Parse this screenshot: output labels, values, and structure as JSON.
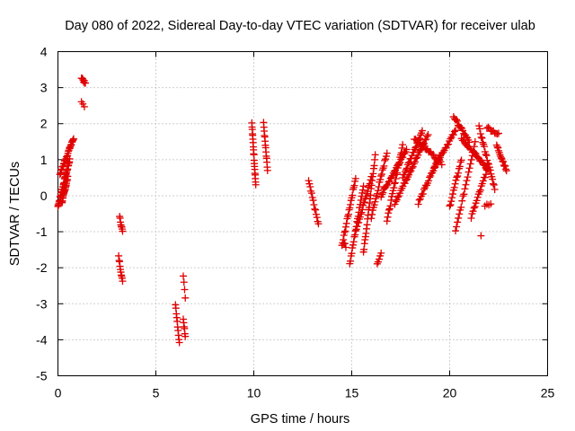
{
  "chart_data": {
    "type": "scatter",
    "title": "Day 080 of 2022, Sidereal Day-to-day VTEC variation (SDTVAR) for receiver ulab",
    "xlabel": "GPS time / hours",
    "ylabel": "SDTVAR / TECUs",
    "xlim": [
      0,
      25
    ],
    "ylim": [
      -5,
      4
    ],
    "xticks": [
      "0",
      "5",
      "10",
      "15",
      "20",
      "25"
    ],
    "yticks": [
      "-5",
      "-4",
      "-3",
      "-2",
      "-1",
      "0",
      "1",
      "2",
      "3",
      "4"
    ],
    "grid": true,
    "marker": "plus",
    "color": "#e00000",
    "segments": [
      {
        "x": [
          0.0,
          0.6
        ],
        "y": [
          -0.3,
          1.0
        ],
        "n": 40
      },
      {
        "x": [
          0.1,
          0.8
        ],
        "y": [
          0.6,
          1.6
        ],
        "n": 30
      },
      {
        "x": [
          0.2,
          0.5
        ],
        "y": [
          -0.2,
          0.5
        ],
        "n": 20
      },
      {
        "x": [
          1.2,
          1.4
        ],
        "y": [
          3.3,
          3.1
        ],
        "n": 8
      },
      {
        "x": [
          1.2,
          1.35
        ],
        "y": [
          2.6,
          2.5
        ],
        "n": 3
      },
      {
        "x": [
          3.15,
          3.3
        ],
        "y": [
          -0.6,
          -1.0
        ],
        "n": 8
      },
      {
        "x": [
          3.1,
          3.3
        ],
        "y": [
          -1.7,
          -2.4
        ],
        "n": 10
      },
      {
        "x": [
          6.0,
          6.2
        ],
        "y": [
          -3.0,
          -4.1
        ],
        "n": 10
      },
      {
        "x": [
          6.4,
          6.5
        ],
        "y": [
          -3.4,
          -3.9
        ],
        "n": 6
      },
      {
        "x": [
          6.4,
          6.5
        ],
        "y": [
          -2.2,
          -2.8
        ],
        "n": 4
      },
      {
        "x": [
          9.9,
          10.1
        ],
        "y": [
          2.0,
          0.3
        ],
        "n": 20
      },
      {
        "x": [
          10.5,
          10.7
        ],
        "y": [
          2.0,
          0.7
        ],
        "n": 14
      },
      {
        "x": [
          12.8,
          13.3
        ],
        "y": [
          0.4,
          -0.8
        ],
        "n": 14
      },
      {
        "x": [
          14.5,
          15.2
        ],
        "y": [
          -1.4,
          0.5
        ],
        "n": 22
      },
      {
        "x": [
          14.9,
          15.6
        ],
        "y": [
          -1.9,
          0.3
        ],
        "n": 22
      },
      {
        "x": [
          15.2,
          16.0
        ],
        "y": [
          -1.0,
          0.5
        ],
        "n": 22
      },
      {
        "x": [
          15.6,
          16.2
        ],
        "y": [
          -1.6,
          1.1
        ],
        "n": 24
      },
      {
        "x": [
          16.3,
          16.5
        ],
        "y": [
          -1.9,
          -1.6
        ],
        "n": 5
      },
      {
        "x": [
          16.0,
          16.8
        ],
        "y": [
          -0.6,
          1.2
        ],
        "n": 22
      },
      {
        "x": [
          16.5,
          17.8
        ],
        "y": [
          0.0,
          1.3
        ],
        "n": 28
      },
      {
        "x": [
          16.8,
          17.6
        ],
        "y": [
          -0.7,
          1.4
        ],
        "n": 24
      },
      {
        "x": [
          17.2,
          18.9
        ],
        "y": [
          -0.2,
          1.7
        ],
        "n": 34
      },
      {
        "x": [
          17.6,
          18.6
        ],
        "y": [
          0.5,
          1.8
        ],
        "n": 24
      },
      {
        "x": [
          18.4,
          19.5
        ],
        "y": [
          -0.2,
          1.1
        ],
        "n": 24
      },
      {
        "x": [
          18.2,
          19.6
        ],
        "y": [
          1.6,
          0.9
        ],
        "n": 24
      },
      {
        "x": [
          19.2,
          20.3
        ],
        "y": [
          0.8,
          1.8
        ],
        "n": 22
      },
      {
        "x": [
          20.0,
          20.6
        ],
        "y": [
          -0.3,
          1.0
        ],
        "n": 16
      },
      {
        "x": [
          20.2,
          21.0
        ],
        "y": [
          2.2,
          1.5
        ],
        "n": 18
      },
      {
        "x": [
          20.3,
          21.3
        ],
        "y": [
          -1.0,
          1.5
        ],
        "n": 22
      },
      {
        "x": [
          20.6,
          22.0
        ],
        "y": [
          1.6,
          0.7
        ],
        "n": 26
      },
      {
        "x": [
          21.1,
          21.9
        ],
        "y": [
          -0.6,
          0.7
        ],
        "n": 18
      },
      {
        "x": [
          21.5,
          22.3
        ],
        "y": [
          1.9,
          0.2
        ],
        "n": 22
      },
      {
        "x": [
          21.9,
          22.5
        ],
        "y": [
          1.9,
          1.7
        ],
        "n": 10
      },
      {
        "x": [
          22.4,
          22.9
        ],
        "y": [
          1.4,
          0.7
        ],
        "n": 16
      },
      {
        "x": [
          21.8,
          22.1
        ],
        "y": [
          -0.3,
          -0.2
        ],
        "n": 4
      },
      {
        "x": [
          21.6,
          21.6
        ],
        "y": [
          -1.15,
          -1.15
        ],
        "n": 1
      },
      {
        "x": [
          14.6,
          14.7
        ],
        "y": [
          -1.3,
          -1.4
        ],
        "n": 3
      }
    ]
  }
}
